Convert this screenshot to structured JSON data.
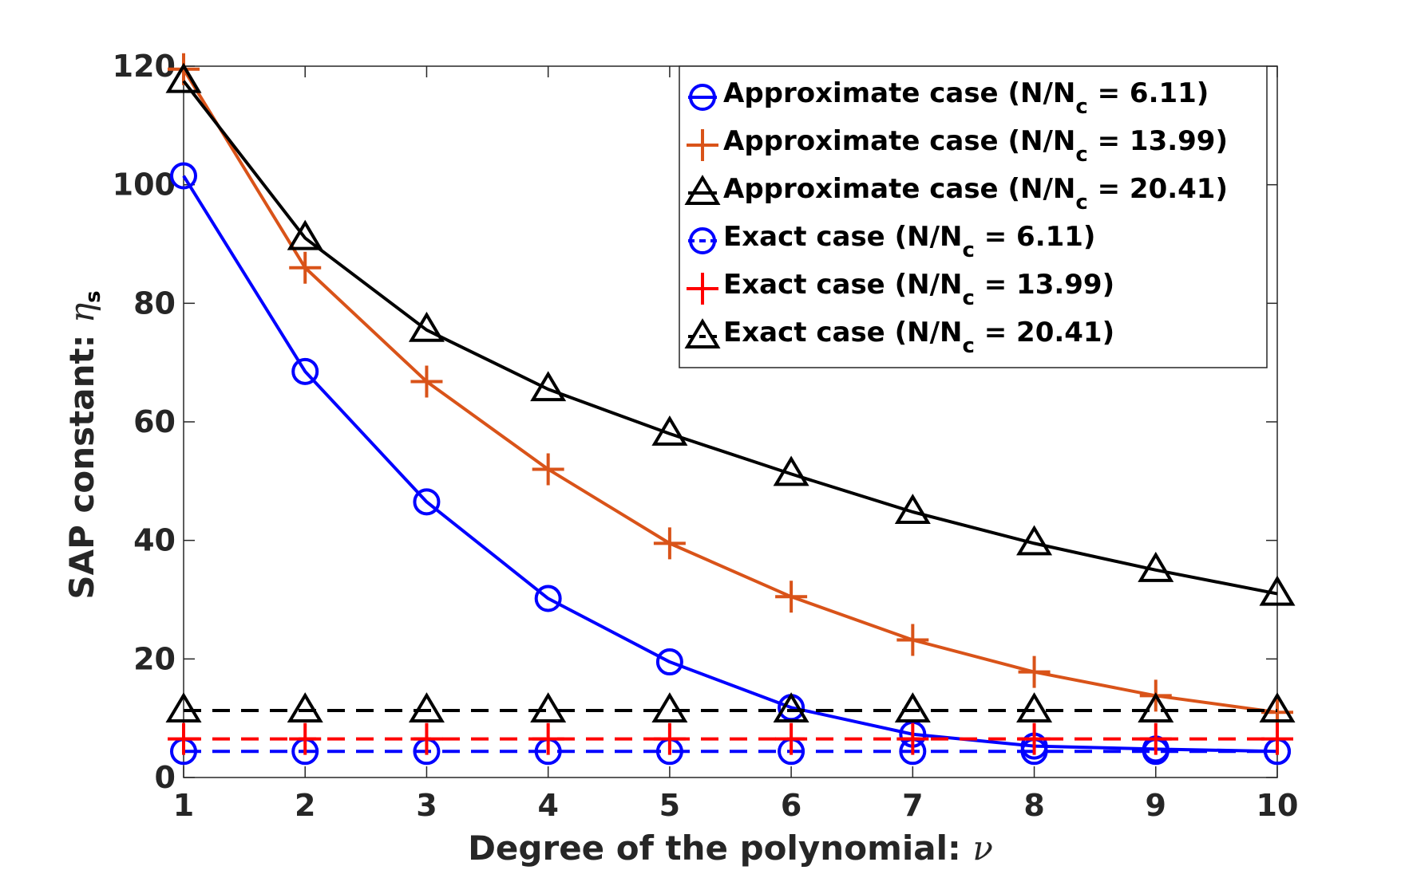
{
  "chart_data": {
    "type": "line",
    "title": "",
    "xlabel": "Degree of the polynomial:",
    "xlabel_symbol": "ν",
    "ylabel": "SAP constant:",
    "ylabel_symbol": "η",
    "ylabel_symbol_sub": "s",
    "xlim": [
      1,
      10
    ],
    "ylim": [
      0,
      120
    ],
    "x": [
      1,
      2,
      3,
      4,
      5,
      6,
      7,
      8,
      9,
      10
    ],
    "xticks": [
      "1",
      "2",
      "3",
      "4",
      "5",
      "6",
      "7",
      "8",
      "9",
      "10"
    ],
    "yticks": [
      "0",
      "20",
      "40",
      "60",
      "80",
      "100",
      "120"
    ],
    "ytick_values": [
      0,
      20,
      40,
      60,
      80,
      100,
      120
    ],
    "grid": false,
    "legend_position": "top-right",
    "series": [
      {
        "name": "Approximate case (N/N",
        "sub": "c",
        "tail": " = 6.11)",
        "color": "#0000ff",
        "marker": "circle",
        "line": "solid",
        "values": [
          101.5,
          68.5,
          46.5,
          30.2,
          19.5,
          11.8,
          7.3,
          5.3,
          4.8,
          4.4
        ]
      },
      {
        "name": "Approximate case (N/N",
        "sub": "c",
        "tail": " = 13.99)",
        "color": "#d95319",
        "marker": "plus",
        "line": "solid",
        "values": [
          119.5,
          86,
          66.8,
          52,
          39.5,
          30.5,
          23.2,
          17.8,
          13.8,
          11
        ]
      },
      {
        "name": "Approximate case (N/N",
        "sub": "c",
        "tail": " = 20.41)",
        "color": "#000000",
        "marker": "triangle",
        "line": "solid",
        "values": [
          117.5,
          91,
          75.5,
          65.5,
          58,
          51.2,
          44.8,
          39.5,
          35,
          31
        ]
      },
      {
        "name": "Exact case (N/N",
        "sub": "c",
        "tail": " = 6.11)",
        "color": "#0000ff",
        "marker": "circle",
        "line": "dashed",
        "values": [
          4.4,
          4.4,
          4.4,
          4.4,
          4.4,
          4.4,
          4.4,
          4.4,
          4.4,
          4.4
        ]
      },
      {
        "name": "Exact case (N/N",
        "sub": "c",
        "tail": " = 13.99)",
        "color": "#ff0000",
        "marker": "plus",
        "line": "dashed",
        "values": [
          6.5,
          6.5,
          6.5,
          6.5,
          6.5,
          6.5,
          6.5,
          6.5,
          6.5,
          6.5
        ]
      },
      {
        "name": "Exact case (N/N",
        "sub": "c",
        "tail": " = 20.41)",
        "color": "#000000",
        "marker": "triangle",
        "line": "dashed",
        "values": [
          11.3,
          11.3,
          11.3,
          11.3,
          11.3,
          11.3,
          11.3,
          11.3,
          11.3,
          11.3
        ]
      }
    ]
  }
}
